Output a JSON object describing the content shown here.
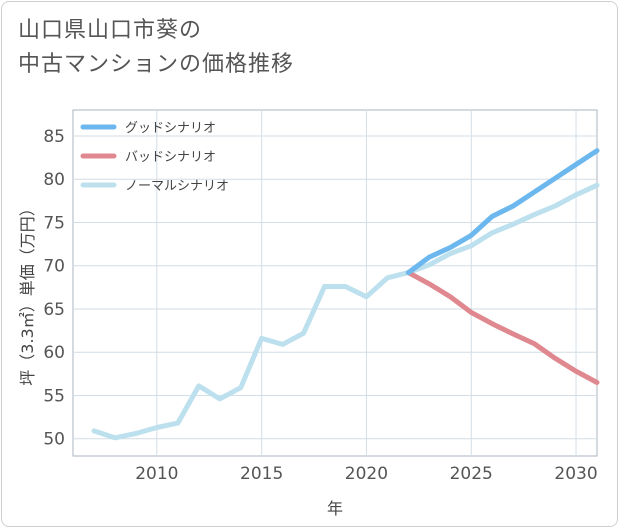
{
  "title": {
    "line1": "山口県山口市葵の",
    "line2": "中古マンションの価格推移"
  },
  "colors": {
    "good": "#6cb8ee",
    "bad": "#e0888f",
    "normal": "#bde0ee",
    "grid": "#d3dee6",
    "plot_border": "#aab6bf"
  },
  "chart_data": {
    "type": "line",
    "title": "山口県山口市葵の中古マンションの価格推移",
    "xlabel": "年",
    "ylabel": "坪（3.3㎡）単価（万円）",
    "xlim": [
      2006,
      2031
    ],
    "ylim": [
      48,
      88
    ],
    "x_ticks": [
      2010,
      2015,
      2020,
      2025,
      2030
    ],
    "y_ticks": [
      50,
      55,
      60,
      65,
      70,
      75,
      80,
      85
    ],
    "grid": true,
    "legend_position": "top-left",
    "series": [
      {
        "name": "グッドシナリオ",
        "color": "#6cb8ee",
        "x": [
          2022,
          2023,
          2024,
          2025,
          2026,
          2027,
          2028,
          2029,
          2030,
          2031
        ],
        "y": [
          69.2,
          71.0,
          72.1,
          73.5,
          75.7,
          76.9,
          78.5,
          80.1,
          81.7,
          83.3
        ]
      },
      {
        "name": "バッドシナリオ",
        "color": "#e0888f",
        "x": [
          2022,
          2023,
          2024,
          2025,
          2026,
          2027,
          2028,
          2029,
          2030,
          2031
        ],
        "y": [
          69.2,
          67.9,
          66.4,
          64.6,
          63.3,
          62.1,
          61.0,
          59.3,
          57.8,
          56.5
        ]
      },
      {
        "name": "ノーマルシナリオ",
        "color": "#bde0ee",
        "x": [
          2007,
          2008,
          2009,
          2010,
          2011,
          2012,
          2013,
          2014,
          2015,
          2016,
          2017,
          2018,
          2019,
          2020,
          2021,
          2022,
          2023,
          2024,
          2025,
          2026,
          2027,
          2028,
          2029,
          2030,
          2031
        ],
        "y": [
          50.9,
          50.1,
          50.6,
          51.3,
          51.8,
          56.1,
          54.6,
          55.9,
          61.6,
          60.9,
          62.2,
          67.6,
          67.6,
          66.4,
          68.6,
          69.2,
          70.1,
          71.4,
          72.3,
          73.8,
          74.8,
          75.9,
          76.9,
          78.2,
          79.3
        ]
      }
    ]
  }
}
